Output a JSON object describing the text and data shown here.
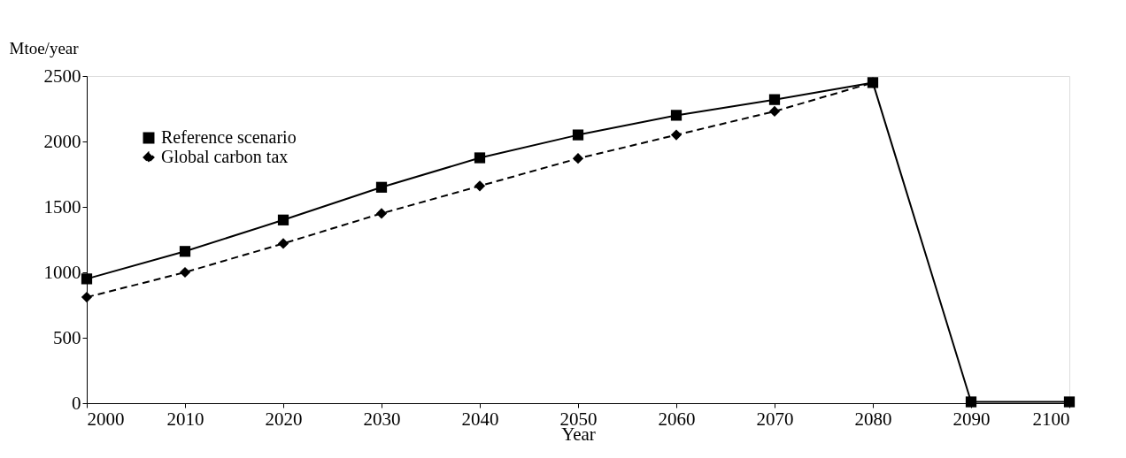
{
  "chart_data": {
    "type": "line",
    "xlabel": "Year",
    "ylabel": "Mtoe/year",
    "x": [
      2000,
      2010,
      2020,
      2030,
      2040,
      2050,
      2060,
      2070,
      2080,
      2090,
      2100
    ],
    "series": [
      {
        "name": "Reference scenario",
        "color": "#000000",
        "marker": "square",
        "line_style": "solid",
        "values": [
          950,
          1160,
          1400,
          1650,
          1875,
          2050,
          2200,
          2320,
          2450,
          10,
          10
        ]
      },
      {
        "name": "Global carbon tax",
        "color": "#000000",
        "marker": "diamond",
        "line_style": "dashed",
        "values": [
          810,
          1000,
          1220,
          1450,
          1660,
          1870,
          2050,
          2230,
          2450,
          null,
          null
        ]
      }
    ],
    "xlim": [
      2000,
      2100
    ],
    "xticks": [
      2000,
      2010,
      2020,
      2030,
      2040,
      2050,
      2060,
      2070,
      2080,
      2090,
      2100
    ],
    "ylim": [
      0,
      2500
    ],
    "yticks": [
      0,
      500,
      1000,
      1500,
      2000,
      2500
    ],
    "grid": false,
    "legend": "top left"
  }
}
